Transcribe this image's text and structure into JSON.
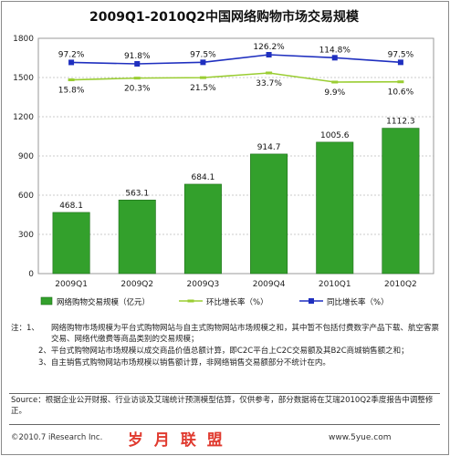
{
  "title": "2009Q1-2010Q2中国网络购物市场交易规模",
  "chart_data": {
    "type": "bar",
    "categories": [
      "2009Q1",
      "2009Q2",
      "2009Q3",
      "2009Q4",
      "2010Q1",
      "2010Q2"
    ],
    "ylim": [
      0,
      1800
    ],
    "yticks": [
      0,
      300,
      600,
      900,
      1200,
      1500,
      1800
    ],
    "grid": true,
    "legend_position": "bottom",
    "series": [
      {
        "name": "网络购物交易规模（亿元）",
        "kind": "bar",
        "color": "#33a02c",
        "values": [
          468.1,
          563.1,
          684.1,
          914.7,
          1005.6,
          1112.3
        ],
        "labels": [
          "468.1",
          "563.1",
          "684.1",
          "914.7",
          "1005.6",
          "1112.3"
        ]
      },
      {
        "name": "环比增长率（%）",
        "kind": "line",
        "color": "#9acd32",
        "values": [
          15.8,
          20.3,
          21.5,
          33.7,
          9.9,
          10.6
        ],
        "labels": [
          "15.8%",
          "20.3%",
          "21.5%",
          "33.7%",
          "9.9%",
          "10.6%"
        ]
      },
      {
        "name": "同比增长率（%）",
        "kind": "line",
        "color": "#1f2fbf",
        "values": [
          97.2,
          91.8,
          97.5,
          126.2,
          114.8,
          97.5
        ],
        "labels": [
          "97.2%",
          "91.8%",
          "97.5%",
          "126.2%",
          "114.8%",
          "97.5%"
        ]
      }
    ]
  },
  "notes": {
    "label": "注：1、",
    "items": [
      "网络购物市场规模为平台式购物网站与自主式购物网站市场规模之和，其中暂不包括付费数字产品下载、航空客票交易、网络代缴费等商品类别的交易规模；",
      "2、平台式购物网站市场规模以成交商品价值总额计算，即C2C平台上C2C交易额及其B2C商城销售额之和；",
      "3、自主销售式购物网站市场规模以销售额计算，非网络销售交易额部分不统计在内。"
    ]
  },
  "source": "Source：根据企业公开财报、行业访谈及艾瑞统计预测模型估算，仅供参考，部分数据将在艾瑞2010Q2季度报告中调整修正。",
  "footer": "©2010.7 iResearch Inc.",
  "watermark": "岁 月 联 盟",
  "watermark_url": "www.5yue.com"
}
